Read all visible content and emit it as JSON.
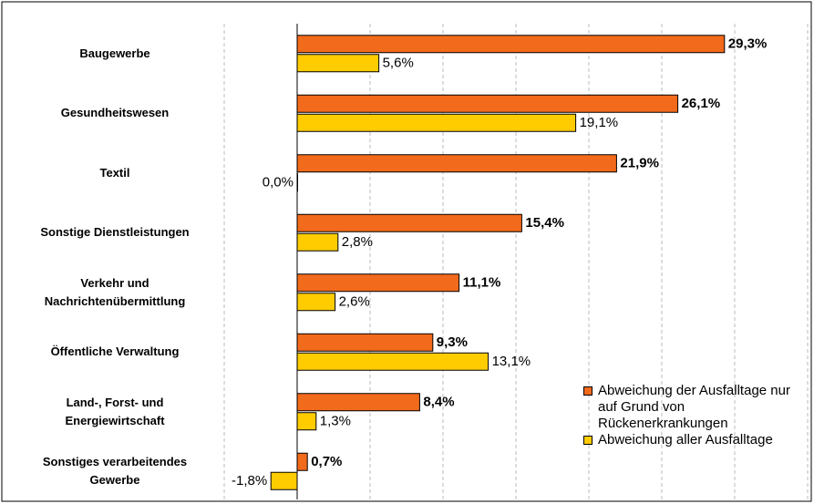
{
  "chart_data": {
    "type": "hbar",
    "categories": [
      "Baugewerbe",
      "Gesundheitswesen",
      "Textil",
      "Sonstige Dienstleistungen",
      "Verkehr und\nNachrichtenübermittlung",
      "Öffentliche Verwaltung",
      "Land-, Forst- und\nEnergiewirtschaft",
      "Sonstiges verarbeitendes\nGewerbe"
    ],
    "series": [
      {
        "name": "Abweichung der Ausfalltage nur auf Grund von Rückenerkrankungen",
        "color": "#f26a1b",
        "values": [
          29.3,
          26.1,
          21.9,
          15.4,
          11.1,
          9.3,
          8.4,
          0.7
        ],
        "value_labels": [
          "29,3%",
          "26,1%",
          "21,9%",
          "15,4%",
          "11,1%",
          "9,3%",
          "8,4%",
          "0,7%"
        ]
      },
      {
        "name": "Abweichung aller Ausfalltage",
        "color": "#ffcc00",
        "values": [
          5.6,
          19.1,
          0.0,
          2.8,
          2.6,
          13.1,
          1.3,
          -1.8
        ],
        "value_labels": [
          "5,6%",
          "19,1%",
          "0,0%",
          "2,8%",
          "2,6%",
          "13,1%",
          "1,3%",
          "-1,8%"
        ]
      }
    ],
    "xlim": [
      -5,
      35
    ],
    "xticks": [
      -5,
      0,
      5,
      10,
      15,
      20,
      25,
      30,
      35
    ],
    "grid": true,
    "legend": "bottom-right"
  }
}
